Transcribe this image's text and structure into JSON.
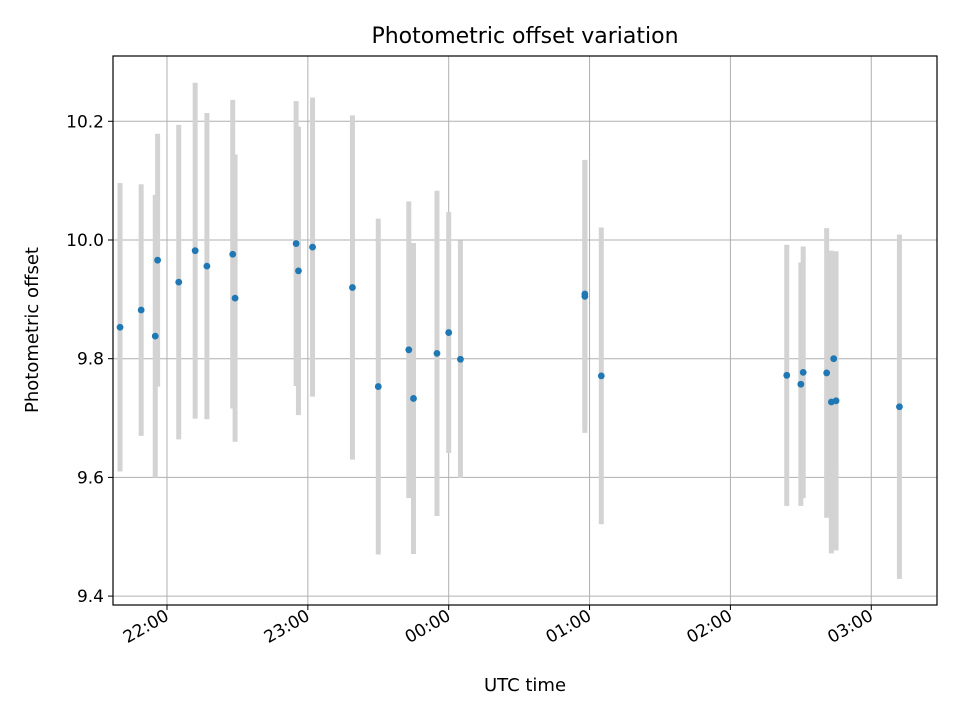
{
  "chart_data": {
    "type": "scatter",
    "title": "Photometric offset variation",
    "xlabel": "UTC time",
    "ylabel": "Photometric offset",
    "grid": true,
    "legend": "none",
    "x_ticks": [
      "22:00",
      "23:00",
      "00:00",
      "01:00",
      "02:00",
      "03:00"
    ],
    "x_tick_times": [
      "22:00",
      "23:00",
      "24:00",
      "25:00",
      "26:00",
      "27:00"
    ],
    "xlim": [
      "21:37",
      "27:28"
    ],
    "y_ticks": [
      "9.4",
      "9.6",
      "9.8",
      "10.0",
      "10.2"
    ],
    "ylim": [
      9.385,
      10.31
    ],
    "colors": {
      "points": "#1f77b4",
      "errorbars": "#d3d3d3",
      "grid": "#b0b0b0"
    },
    "series": [
      {
        "points": [
          {
            "t": "21:40",
            "y": 9.853,
            "err": 0.243
          },
          {
            "t": "21:49",
            "y": 9.882,
            "err": 0.212
          },
          {
            "t": "21:55",
            "y": 9.838,
            "err": 0.238
          },
          {
            "t": "21:56",
            "y": 9.966,
            "err": 0.213
          },
          {
            "t": "22:05",
            "y": 9.929,
            "err": 0.265
          },
          {
            "t": "22:12",
            "y": 9.982,
            "err": 0.283
          },
          {
            "t": "22:17",
            "y": 9.956,
            "err": 0.258
          },
          {
            "t": "22:28",
            "y": 9.976,
            "err": 0.26
          },
          {
            "t": "22:29",
            "y": 9.902,
            "err": 0.242
          },
          {
            "t": "22:55",
            "y": 9.994,
            "err": 0.24
          },
          {
            "t": "22:56",
            "y": 9.948,
            "err": 0.243
          },
          {
            "t": "23:02",
            "y": 9.988,
            "err": 0.252
          },
          {
            "t": "23:19",
            "y": 9.92,
            "err": 0.29
          },
          {
            "t": "23:30",
            "y": 9.753,
            "err": 0.283
          },
          {
            "t": "23:43",
            "y": 9.815,
            "err": 0.25
          },
          {
            "t": "23:45",
            "y": 9.733,
            "err": 0.262
          },
          {
            "t": "23:55",
            "y": 9.809,
            "err": 0.274
          },
          {
            "t": "24:00",
            "y": 9.844,
            "err": 0.203
          },
          {
            "t": "24:05",
            "y": 9.799,
            "err": 0.2
          },
          {
            "t": "24:58",
            "y": 9.905,
            "err": 0.23
          },
          {
            "t": "24:58",
            "y": 9.909,
            "err": 0.225
          },
          {
            "t": "25:05",
            "y": 9.771,
            "err": 0.25
          },
          {
            "t": "26:24",
            "y": 9.772,
            "err": 0.22
          },
          {
            "t": "26:30",
            "y": 9.757,
            "err": 0.205
          },
          {
            "t": "26:31",
            "y": 9.777,
            "err": 0.212
          },
          {
            "t": "26:41",
            "y": 9.776,
            "err": 0.244
          },
          {
            "t": "26:43",
            "y": 9.727,
            "err": 0.255
          },
          {
            "t": "26:44",
            "y": 9.8,
            "err": 0.18
          },
          {
            "t": "26:45",
            "y": 9.729,
            "err": 0.252
          },
          {
            "t": "27:12",
            "y": 9.719,
            "err": 0.29
          }
        ]
      }
    ]
  }
}
